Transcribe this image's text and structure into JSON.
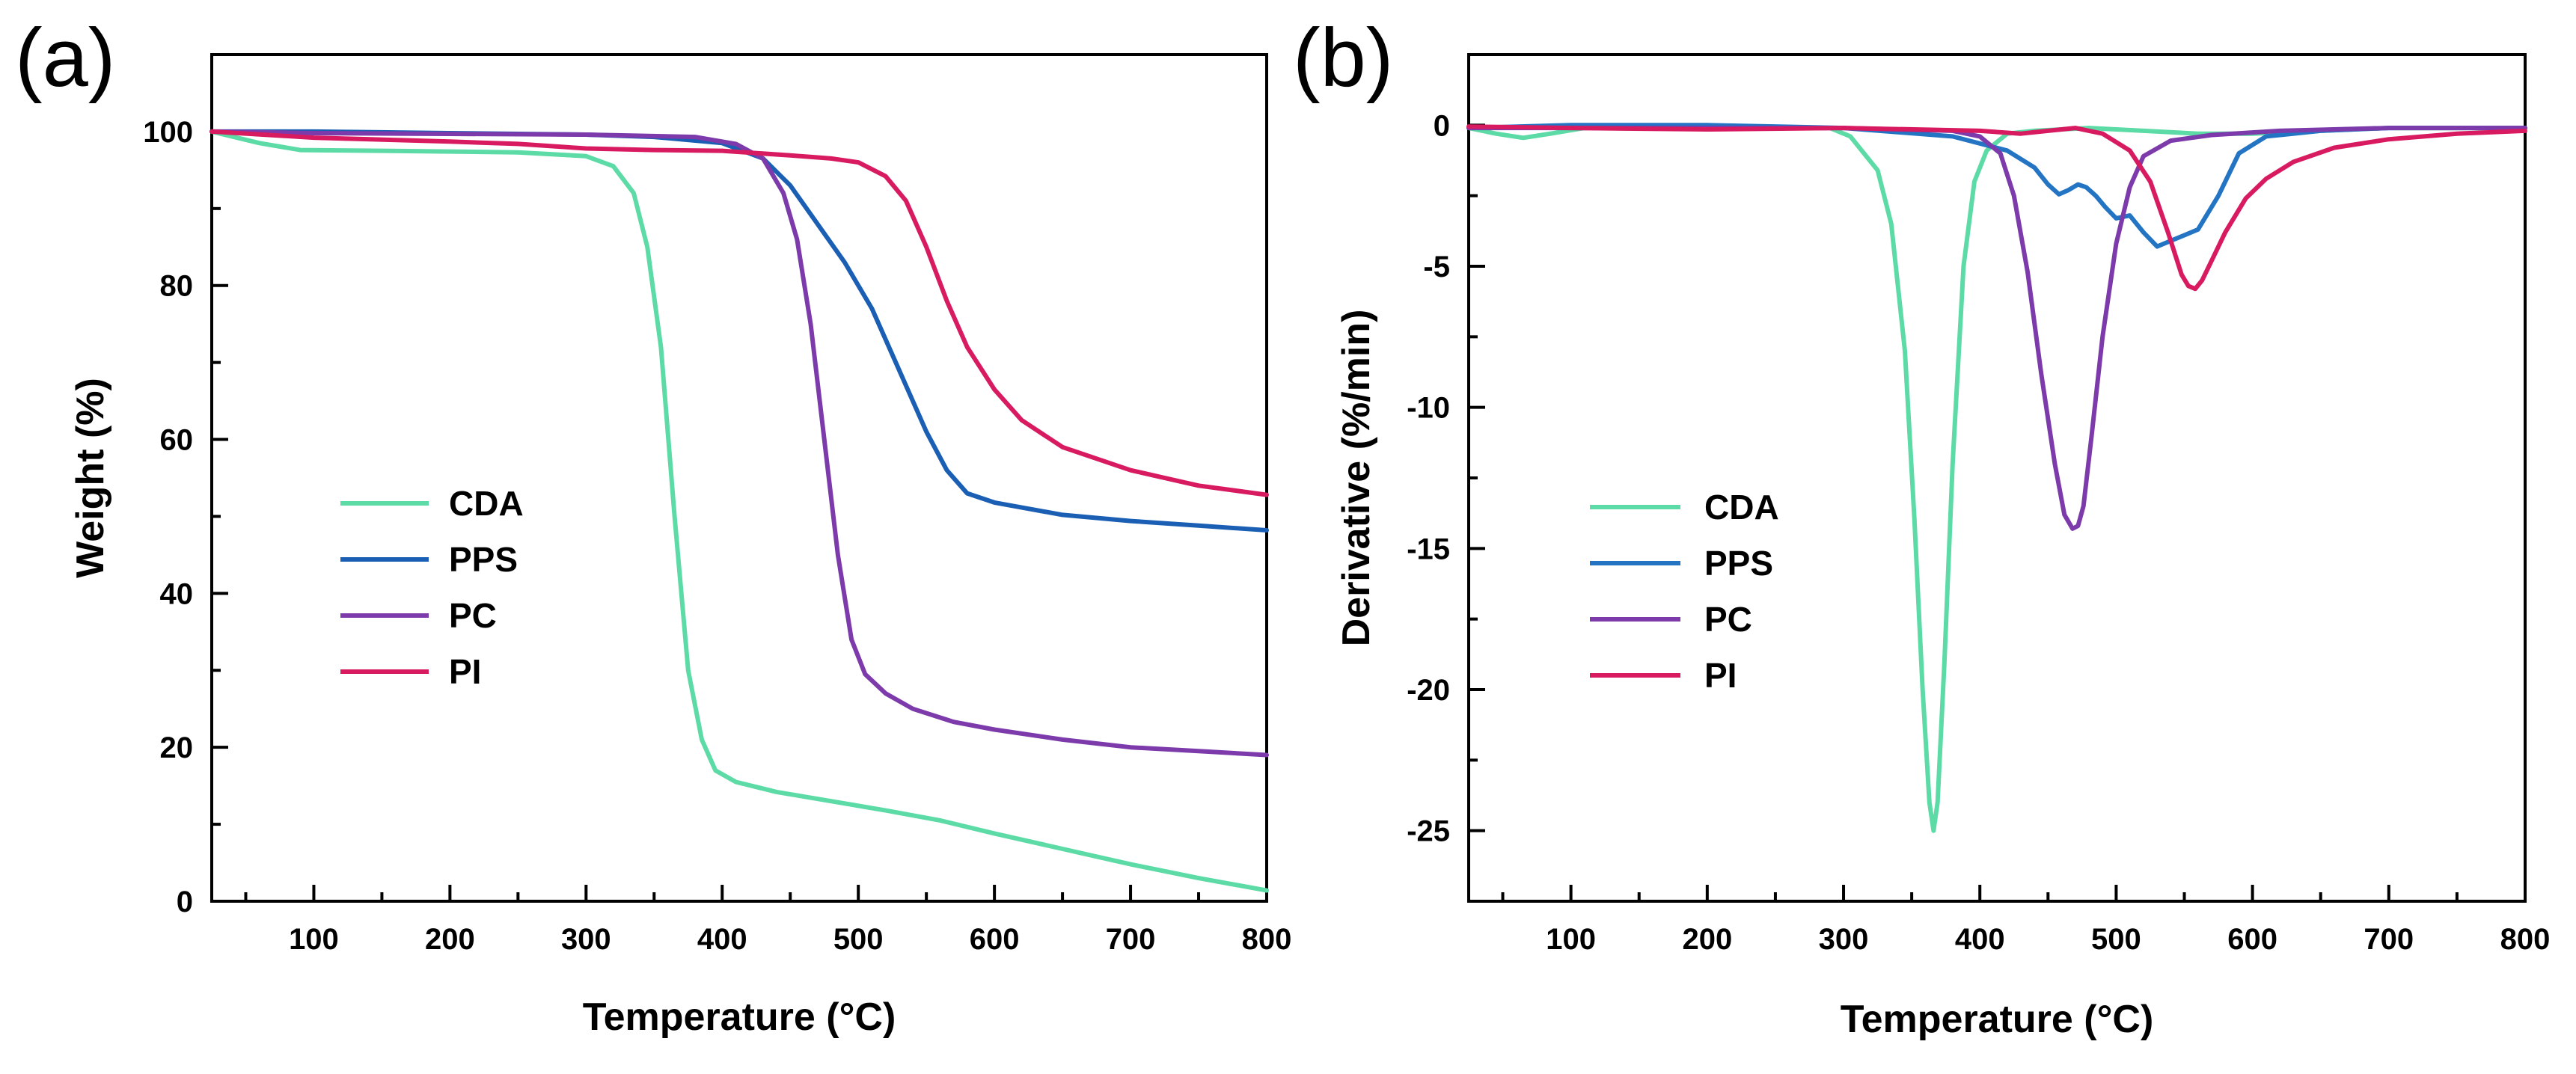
{
  "chart_data": [
    {
      "panel_label": "(a)",
      "type": "line",
      "xlabel": "Temperature (°C)",
      "ylabel": "Weight (%)",
      "xlim": [
        25,
        800
      ],
      "ylim": [
        0,
        110
      ],
      "xticks": [
        100,
        200,
        300,
        400,
        500,
        600,
        700,
        800
      ],
      "yticks": [
        0,
        20,
        40,
        60,
        80,
        100
      ],
      "grid": false,
      "legend_position": "center-left",
      "series": [
        {
          "name": "CDA",
          "color": "#5cdba6",
          "x": [
            25,
            60,
            90,
            150,
            250,
            300,
            320,
            335,
            345,
            355,
            365,
            375,
            385,
            395,
            410,
            440,
            480,
            520,
            560,
            600,
            650,
            700,
            750,
            800
          ],
          "y": [
            100,
            98.5,
            97.6,
            97.5,
            97.3,
            96.8,
            95.5,
            92,
            85,
            72,
            50,
            30,
            21,
            17,
            15.5,
            14.2,
            13,
            11.8,
            10.5,
            8.8,
            6.8,
            4.8,
            3,
            1.4
          ]
        },
        {
          "name": "PPS",
          "color": "#1a5fb4",
          "x": [
            25,
            100,
            200,
            300,
            350,
            400,
            430,
            450,
            470,
            490,
            510,
            530,
            550,
            565,
            580,
            600,
            650,
            700,
            750,
            800
          ],
          "y": [
            100,
            100,
            99.8,
            99.6,
            99.3,
            98.5,
            96.5,
            93,
            88,
            83,
            77,
            69,
            61,
            56,
            53,
            51.8,
            50.2,
            49.4,
            48.8,
            48.2
          ]
        },
        {
          "name": "PC",
          "color": "#7c3aab",
          "x": [
            25,
            100,
            200,
            300,
            380,
            410,
            430,
            445,
            455,
            465,
            475,
            485,
            495,
            505,
            520,
            540,
            570,
            600,
            650,
            700,
            750,
            800
          ],
          "y": [
            100,
            99.8,
            99.7,
            99.6,
            99.3,
            98.4,
            96.5,
            92,
            86,
            75,
            60,
            45,
            34,
            29.5,
            27,
            25,
            23.3,
            22.3,
            21,
            20,
            19.5,
            19
          ]
        },
        {
          "name": "PI",
          "color": "#d81b60",
          "x": [
            25,
            100,
            200,
            250,
            300,
            350,
            400,
            450,
            480,
            500,
            520,
            535,
            550,
            565,
            580,
            600,
            620,
            650,
            700,
            750,
            800
          ],
          "y": [
            100,
            99.2,
            98.7,
            98.4,
            97.8,
            97.6,
            97.5,
            96.9,
            96.5,
            96,
            94.2,
            91,
            85,
            78,
            72,
            66.5,
            62.5,
            59,
            56,
            54,
            52.8
          ]
        }
      ]
    },
    {
      "panel_label": "(b)",
      "type": "line",
      "xlabel": "Temperature (°C)",
      "ylabel": "Derivative (%/min)",
      "xlim": [
        25,
        800
      ],
      "ylim": [
        -27.5,
        2.5
      ],
      "xticks": [
        100,
        200,
        300,
        400,
        500,
        600,
        700,
        800
      ],
      "yticks": [
        0,
        -5,
        -10,
        -15,
        -20,
        -25
      ],
      "grid": false,
      "legend_position": "center-left",
      "series": [
        {
          "name": "CDA",
          "color": "#5cdba6",
          "x": [
            25,
            45,
            65,
            85,
            110,
            200,
            290,
            305,
            315,
            325,
            335,
            345,
            352,
            358,
            363,
            366,
            369,
            374,
            380,
            388,
            396,
            405,
            420,
            440,
            480,
            520,
            560,
            600,
            650,
            700,
            750,
            800
          ],
          "y": [
            -0.1,
            -0.3,
            -0.45,
            -0.3,
            -0.1,
            -0.1,
            -0.1,
            -0.4,
            -1,
            -1.6,
            -3.5,
            -8,
            -14,
            -20,
            -24,
            -25,
            -24,
            -19,
            -12,
            -5,
            -2,
            -0.9,
            -0.3,
            -0.2,
            -0.1,
            -0.2,
            -0.3,
            -0.3,
            -0.2,
            -0.1,
            -0.1,
            -0.1
          ]
        },
        {
          "name": "PPS",
          "color": "#2474c4",
          "x": [
            25,
            100,
            200,
            300,
            380,
            420,
            440,
            450,
            458,
            465,
            472,
            478,
            485,
            492,
            500,
            510,
            520,
            530,
            540,
            550,
            560,
            575,
            590,
            610,
            650,
            700,
            800
          ],
          "y": [
            -0.1,
            0,
            0,
            -0.1,
            -0.4,
            -0.9,
            -1.5,
            -2.1,
            -2.45,
            -2.3,
            -2.1,
            -2.2,
            -2.5,
            -2.9,
            -3.3,
            -3.2,
            -3.8,
            -4.3,
            -4.1,
            -3.9,
            -3.7,
            -2.5,
            -1,
            -0.4,
            -0.2,
            -0.1,
            -0.1
          ]
        },
        {
          "name": "PC",
          "color": "#7c3aab",
          "x": [
            25,
            100,
            200,
            300,
            380,
            400,
            415,
            425,
            435,
            445,
            455,
            462,
            468,
            472,
            476,
            482,
            490,
            500,
            510,
            520,
            540,
            570,
            620,
            700,
            800
          ],
          "y": [
            -0.1,
            -0.1,
            -0.1,
            -0.1,
            -0.2,
            -0.4,
            -1,
            -2.5,
            -5.2,
            -8.8,
            -12,
            -13.8,
            -14.3,
            -14.2,
            -13.5,
            -11,
            -7.5,
            -4.2,
            -2.2,
            -1.1,
            -0.55,
            -0.35,
            -0.2,
            -0.1,
            -0.1
          ]
        },
        {
          "name": "PI",
          "color": "#d81b60",
          "x": [
            25,
            100,
            200,
            300,
            400,
            430,
            450,
            470,
            490,
            510,
            525,
            538,
            548,
            553,
            558,
            563,
            570,
            580,
            595,
            610,
            630,
            660,
            700,
            750,
            800
          ],
          "y": [
            -0.05,
            -0.1,
            -0.15,
            -0.1,
            -0.2,
            -0.3,
            -0.2,
            -0.1,
            -0.3,
            -0.9,
            -2,
            -3.8,
            -5.3,
            -5.7,
            -5.8,
            -5.5,
            -4.8,
            -3.8,
            -2.6,
            -1.9,
            -1.3,
            -0.8,
            -0.5,
            -0.3,
            -0.2
          ]
        }
      ]
    }
  ]
}
